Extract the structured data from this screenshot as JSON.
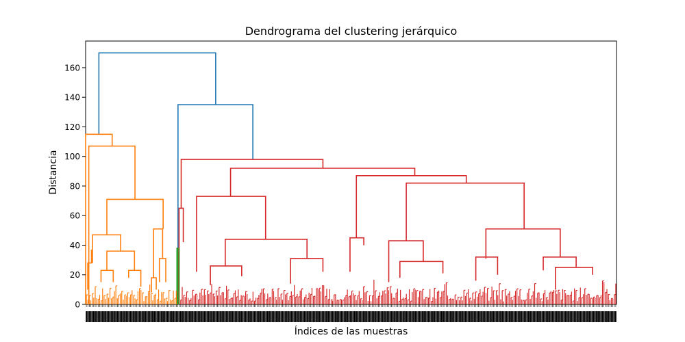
{
  "chart_data": {
    "type": "dendrogram",
    "title": "Dendrograma del clustering jerárquico",
    "xlabel": "Índices de las muestras",
    "ylabel": "Distancia",
    "ylim": [
      0,
      178
    ],
    "yticks": [
      0,
      20,
      40,
      60,
      80,
      100,
      120,
      140,
      160
    ],
    "grid": false,
    "legend": "none",
    "leaf_count": 360,
    "colors": {
      "root": "#1f77b4",
      "cluster_1": "#ff7f0e",
      "cluster_2": "#2ca02c",
      "cluster_3": "#d62728",
      "axes": "#000000"
    },
    "clusters": [
      {
        "color": "cluster_1",
        "leaf_range": [
          0,
          62
        ]
      },
      {
        "color": "cluster_2",
        "leaf_range": [
          62,
          64
        ]
      },
      {
        "color": "cluster_3",
        "leaf_range": [
          64,
          360
        ]
      }
    ],
    "links": [
      {
        "color": "root",
        "height": 170,
        "left": {
          "x": 0.025,
          "y": 115
        },
        "right": {
          "x": 0.245,
          "y": 135
        }
      },
      {
        "color": "root",
        "height": 135,
        "left": {
          "x": 0.174,
          "y": 0
        },
        "right": {
          "x": 0.315,
          "y": 98
        }
      },
      {
        "color": "cluster_1",
        "height": 115,
        "left": {
          "x": 0.0,
          "y": 0
        },
        "right": {
          "x": 0.05,
          "y": 107
        }
      },
      {
        "color": "cluster_1",
        "height": 107,
        "left": {
          "x": 0.006,
          "y": 0
        },
        "right": {
          "x": 0.093,
          "y": 71
        }
      },
      {
        "color": "cluster_1",
        "height": 71,
        "left": {
          "x": 0.04,
          "y": 47
        },
        "right": {
          "x": 0.146,
          "y": 51
        }
      },
      {
        "color": "cluster_1",
        "height": 47,
        "left": {
          "x": 0.013,
          "y": 28
        },
        "right": {
          "x": 0.066,
          "y": 36
        }
      },
      {
        "color": "cluster_1",
        "height": 36,
        "left": {
          "x": 0.04,
          "y": 23
        },
        "right": {
          "x": 0.092,
          "y": 23
        }
      },
      {
        "color": "cluster_1",
        "height": 51,
        "left": {
          "x": 0.128,
          "y": 18
        },
        "right": {
          "x": 0.145,
          "y": 31
        }
      },
      {
        "color": "cluster_1",
        "height": 31,
        "left": {
          "x": 0.139,
          "y": 15
        },
        "right": {
          "x": 0.151,
          "y": 15
        }
      },
      {
        "color": "cluster_1",
        "height": 23,
        "left": {
          "x": 0.029,
          "y": 15
        },
        "right": {
          "x": 0.052,
          "y": 15
        }
      },
      {
        "color": "cluster_1",
        "height": 23,
        "left": {
          "x": 0.081,
          "y": 18
        },
        "right": {
          "x": 0.104,
          "y": 12
        }
      },
      {
        "color": "cluster_1",
        "height": 18,
        "left": {
          "x": 0.124,
          "y": 8
        },
        "right": {
          "x": 0.133,
          "y": 10
        }
      },
      {
        "color": "cluster_1",
        "height": 28,
        "left": {
          "x": 0.004,
          "y": 10
        },
        "right": {
          "x": 0.011,
          "y": 37
        }
      },
      {
        "color": "cluster_2",
        "height": 38,
        "left": {
          "x": 0.172,
          "y": 0
        },
        "right": {
          "x": 0.175,
          "y": 0
        }
      },
      {
        "color": "cluster_3",
        "height": 98,
        "left": {
          "x": 0.18,
          "y": 65
        },
        "right": {
          "x": 0.447,
          "y": 92
        }
      },
      {
        "color": "cluster_3",
        "height": 65,
        "left": {
          "x": 0.176,
          "y": 0
        },
        "right": {
          "x": 0.184,
          "y": 42
        }
      },
      {
        "color": "cluster_3",
        "height": 92,
        "left": {
          "x": 0.273,
          "y": 73
        },
        "right": {
          "x": 0.62,
          "y": 87
        }
      },
      {
        "color": "cluster_3",
        "height": 73,
        "left": {
          "x": 0.209,
          "y": 22
        },
        "right": {
          "x": 0.339,
          "y": 44
        }
      },
      {
        "color": "cluster_3",
        "height": 44,
        "left": {
          "x": 0.263,
          "y": 26
        },
        "right": {
          "x": 0.417,
          "y": 31
        }
      },
      {
        "color": "cluster_3",
        "height": 26,
        "left": {
          "x": 0.235,
          "y": 13
        },
        "right": {
          "x": 0.294,
          "y": 19
        }
      },
      {
        "color": "cluster_3",
        "height": 31,
        "left": {
          "x": 0.386,
          "y": 14
        },
        "right": {
          "x": 0.447,
          "y": 22
        }
      },
      {
        "color": "cluster_3",
        "height": 87,
        "left": {
          "x": 0.51,
          "y": 45
        },
        "right": {
          "x": 0.717,
          "y": 82
        }
      },
      {
        "color": "cluster_3",
        "height": 45,
        "left": {
          "x": 0.498,
          "y": 22
        },
        "right": {
          "x": 0.524,
          "y": 40
        }
      },
      {
        "color": "cluster_3",
        "height": 82,
        "left": {
          "x": 0.604,
          "y": 43
        },
        "right": {
          "x": 0.826,
          "y": 51
        }
      },
      {
        "color": "cluster_3",
        "height": 43,
        "left": {
          "x": 0.571,
          "y": 15
        },
        "right": {
          "x": 0.636,
          "y": 29
        }
      },
      {
        "color": "cluster_3",
        "height": 29,
        "left": {
          "x": 0.592,
          "y": 18
        },
        "right": {
          "x": 0.673,
          "y": 21
        }
      },
      {
        "color": "cluster_3",
        "height": 51,
        "left": {
          "x": 0.754,
          "y": 31
        },
        "right": {
          "x": 0.894,
          "y": 32
        }
      },
      {
        "color": "cluster_3",
        "height": 32,
        "left": {
          "x": 0.735,
          "y": 16
        },
        "right": {
          "x": 0.776,
          "y": 20
        }
      },
      {
        "color": "cluster_3",
        "height": 32,
        "left": {
          "x": 0.862,
          "y": 23
        },
        "right": {
          "x": 0.924,
          "y": 25
        }
      },
      {
        "color": "cluster_3",
        "height": 25,
        "left": {
          "x": 0.885,
          "y": 10
        },
        "right": {
          "x": 0.955,
          "y": 20
        }
      }
    ]
  }
}
